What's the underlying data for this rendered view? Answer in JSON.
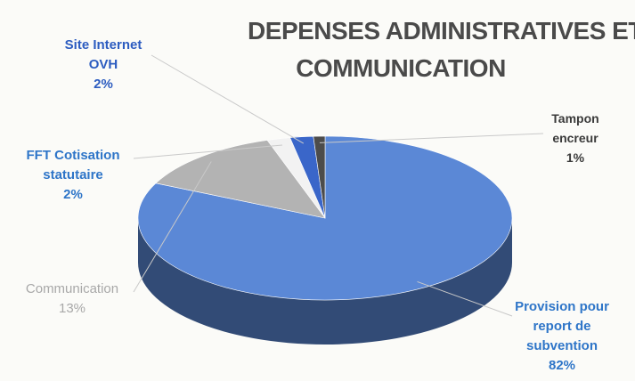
{
  "chart_data": {
    "type": "pie",
    "title_lines": [
      "DEPENSES ADMINISTRATIVES ET",
      "COMMUNICATION"
    ],
    "slices": [
      {
        "label_lines": [
          "Provision pour",
          "report de",
          "subvention"
        ],
        "pct_label": "82%",
        "value": 82,
        "color": "#5b88d6",
        "label_color": "#2e75c8"
      },
      {
        "label_lines": [
          "Communication"
        ],
        "pct_label": "13%",
        "value": 13,
        "color": "#b3b3b3",
        "label_color": "#a8a8a8"
      },
      {
        "label_lines": [
          "FFT Cotisation",
          "statutaire"
        ],
        "pct_label": "2%",
        "value": 2,
        "color": "#f2f2f2",
        "label_color": "#2e75c8"
      },
      {
        "label_lines": [
          "Site Internet",
          "OVH"
        ],
        "pct_label": "2%",
        "value": 2,
        "color": "#3a66c9",
        "label_color": "#2c5cc0"
      },
      {
        "label_lines": [
          "Tampon",
          "encreur"
        ],
        "pct_label": "1%",
        "value": 1,
        "color": "#4c4c4c",
        "label_color": "#3a3a3a"
      }
    ],
    "legend": "none"
  }
}
